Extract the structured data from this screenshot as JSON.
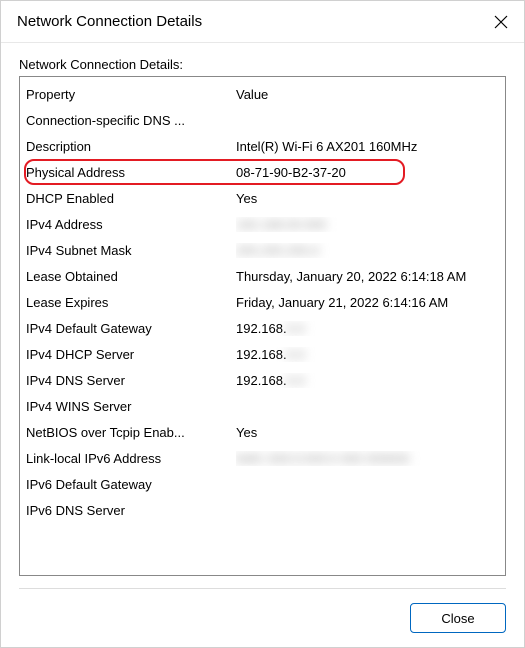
{
  "window": {
    "title": "Network Connection Details",
    "close_button_label": "Close"
  },
  "section_label": "Network Connection Details:",
  "table": {
    "headers": {
      "property": "Property",
      "value": "Value"
    },
    "rows": [
      {
        "property": "Connection-specific DNS ...",
        "value": "",
        "blurred": false,
        "highlighted": false
      },
      {
        "property": "Description",
        "value": "Intel(R) Wi-Fi 6 AX201 160MHz",
        "blurred": false,
        "highlighted": false
      },
      {
        "property": "Physical Address",
        "value": "08-71-90-B2-37-20",
        "blurred": false,
        "highlighted": true
      },
      {
        "property": "DHCP Enabled",
        "value": "Yes",
        "blurred": false,
        "highlighted": false
      },
      {
        "property": "IPv4 Address",
        "value": "192.168.00.000",
        "blurred": true,
        "highlighted": false
      },
      {
        "property": "IPv4 Subnet Mask",
        "value": "255.255.255.0",
        "blurred": true,
        "highlighted": false
      },
      {
        "property": "Lease Obtained",
        "value": "Thursday, January 20, 2022 6:14:18 AM",
        "blurred": false,
        "highlighted": false
      },
      {
        "property": "Lease Expires",
        "value": "Friday, January 21, 2022 6:14:16 AM",
        "blurred": false,
        "highlighted": false
      },
      {
        "property": "IPv4 Default Gateway",
        "value": "192.168.",
        "partial_blur": true,
        "blur_suffix": "0.0",
        "blurred": false,
        "highlighted": false
      },
      {
        "property": "IPv4 DHCP Server",
        "value": "192.168.",
        "partial_blur": true,
        "blur_suffix": "0.0",
        "blurred": false,
        "highlighted": false
      },
      {
        "property": "IPv4 DNS Server",
        "value": "192.168.",
        "partial_blur": true,
        "blur_suffix": "0.0",
        "blurred": false,
        "highlighted": false
      },
      {
        "property": "IPv4 WINS Server",
        "value": "",
        "blurred": false,
        "highlighted": false
      },
      {
        "property": "NetBIOS over Tcpip Enab...",
        "value": "Yes",
        "blurred": false,
        "highlighted": false
      },
      {
        "property": "Link-local IPv6 Address",
        "value": "fe80::000:0:000:0 000 000000",
        "blurred": true,
        "highlighted": false
      },
      {
        "property": "IPv6 Default Gateway",
        "value": "",
        "blurred": false,
        "highlighted": false
      },
      {
        "property": "IPv6 DNS Server",
        "value": "",
        "blurred": false,
        "highlighted": false
      }
    ]
  },
  "colors": {
    "highlight_border": "#e31b23",
    "button_border": "#0067c0",
    "box_border": "#888888",
    "background": "#ffffff"
  }
}
